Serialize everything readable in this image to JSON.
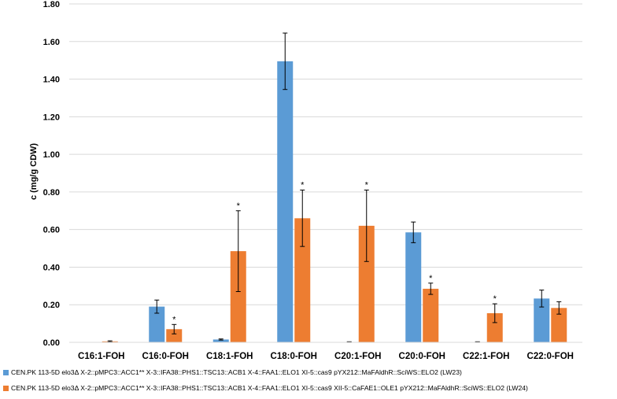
{
  "chart_data": {
    "type": "bar",
    "title": "",
    "xlabel": "",
    "ylabel": "c (mg/g CDW)",
    "ylim": [
      0,
      1.8
    ],
    "yticks": [
      "0.00",
      "0.20",
      "0.40",
      "0.60",
      "0.80",
      "1.00",
      "1.20",
      "1.40",
      "1.60",
      "1.80"
    ],
    "grid": true,
    "legend_position": "bottom",
    "categories": [
      "C16:1-FOH",
      "C16:0-FOH",
      "C18:1-FOH",
      "C18:0-FOH",
      "C20:1-FOH",
      "C20:0-FOH",
      "C22:1-FOH",
      "C22:0-FOH"
    ],
    "series": [
      {
        "name": "LW23",
        "color": "#5B9BD5",
        "values": [
          0.0,
          0.19,
          0.015,
          1.495,
          0.002,
          0.585,
          0.002,
          0.233
        ],
        "errors": [
          0.0,
          0.035,
          0.003,
          0.15,
          0.001,
          0.055,
          0.001,
          0.045
        ],
        "significance": [
          "",
          "",
          "",
          "",
          "",
          "",
          "",
          ""
        ]
      },
      {
        "name": "LW24",
        "color": "#ED7D31",
        "values": [
          0.005,
          0.07,
          0.485,
          0.66,
          0.62,
          0.285,
          0.155,
          0.183
        ],
        "errors": [
          0.003,
          0.025,
          0.215,
          0.15,
          0.19,
          0.03,
          0.05,
          0.033
        ],
        "significance": [
          "",
          "*",
          "*",
          "*",
          "*",
          "*",
          "*",
          ""
        ]
      }
    ]
  },
  "legend": {
    "lw23_text": "CEN.PK 113-5D elo3Δ X-2::pMPC3::ACC1** X-3::IFA38::PHS1::TSC13::ACB1 X-4::FAA1::ELO1 XI-5::cas9 pYX212::MaFAldhR::SciWS::ELO2 (LW23)",
    "lw24_text": "CEN.PK 113-5D elo3Δ X-2::pMPC3::ACC1** X-3::IFA38::PHS1::TSC13::ACB1 X-4::FAA1::ELO1 XI-5::cas9 XII-5::CaFAE1::OLE1 pYX212::MaFAldhR::SciWS::ELO2 (LW24)"
  }
}
